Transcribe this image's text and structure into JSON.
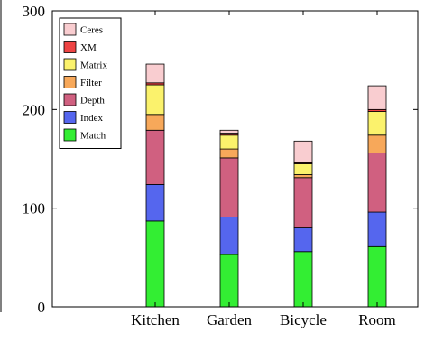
{
  "chart_data": {
    "type": "bar",
    "stacked": true,
    "categories": [
      "Kitchen",
      "Garden",
      "Bicycle",
      "Room"
    ],
    "ylim": [
      0,
      300
    ],
    "yticks": [
      0,
      100,
      200,
      300
    ],
    "grid": false,
    "legend_position": "top-left",
    "series": [
      {
        "name": "Match",
        "color": "#33ee33",
        "values": [
          87,
          53,
          56,
          61
        ]
      },
      {
        "name": "Index",
        "color": "#5566ee",
        "values": [
          37,
          38,
          24,
          35
        ]
      },
      {
        "name": "Depth",
        "color": "#d06080",
        "values": [
          55,
          60,
          51,
          60
        ]
      },
      {
        "name": "Filter",
        "color": "#f7a85a",
        "values": [
          16,
          9,
          3,
          18
        ]
      },
      {
        "name": "Matrix",
        "color": "#fbf26c",
        "values": [
          30,
          14,
          11,
          24
        ]
      },
      {
        "name": "XM",
        "color": "#ee4444",
        "values": [
          2,
          2,
          1,
          2
        ]
      },
      {
        "name": "Ceres",
        "color": "#f9cdd0",
        "values": [
          19,
          3,
          22,
          24
        ]
      }
    ]
  }
}
